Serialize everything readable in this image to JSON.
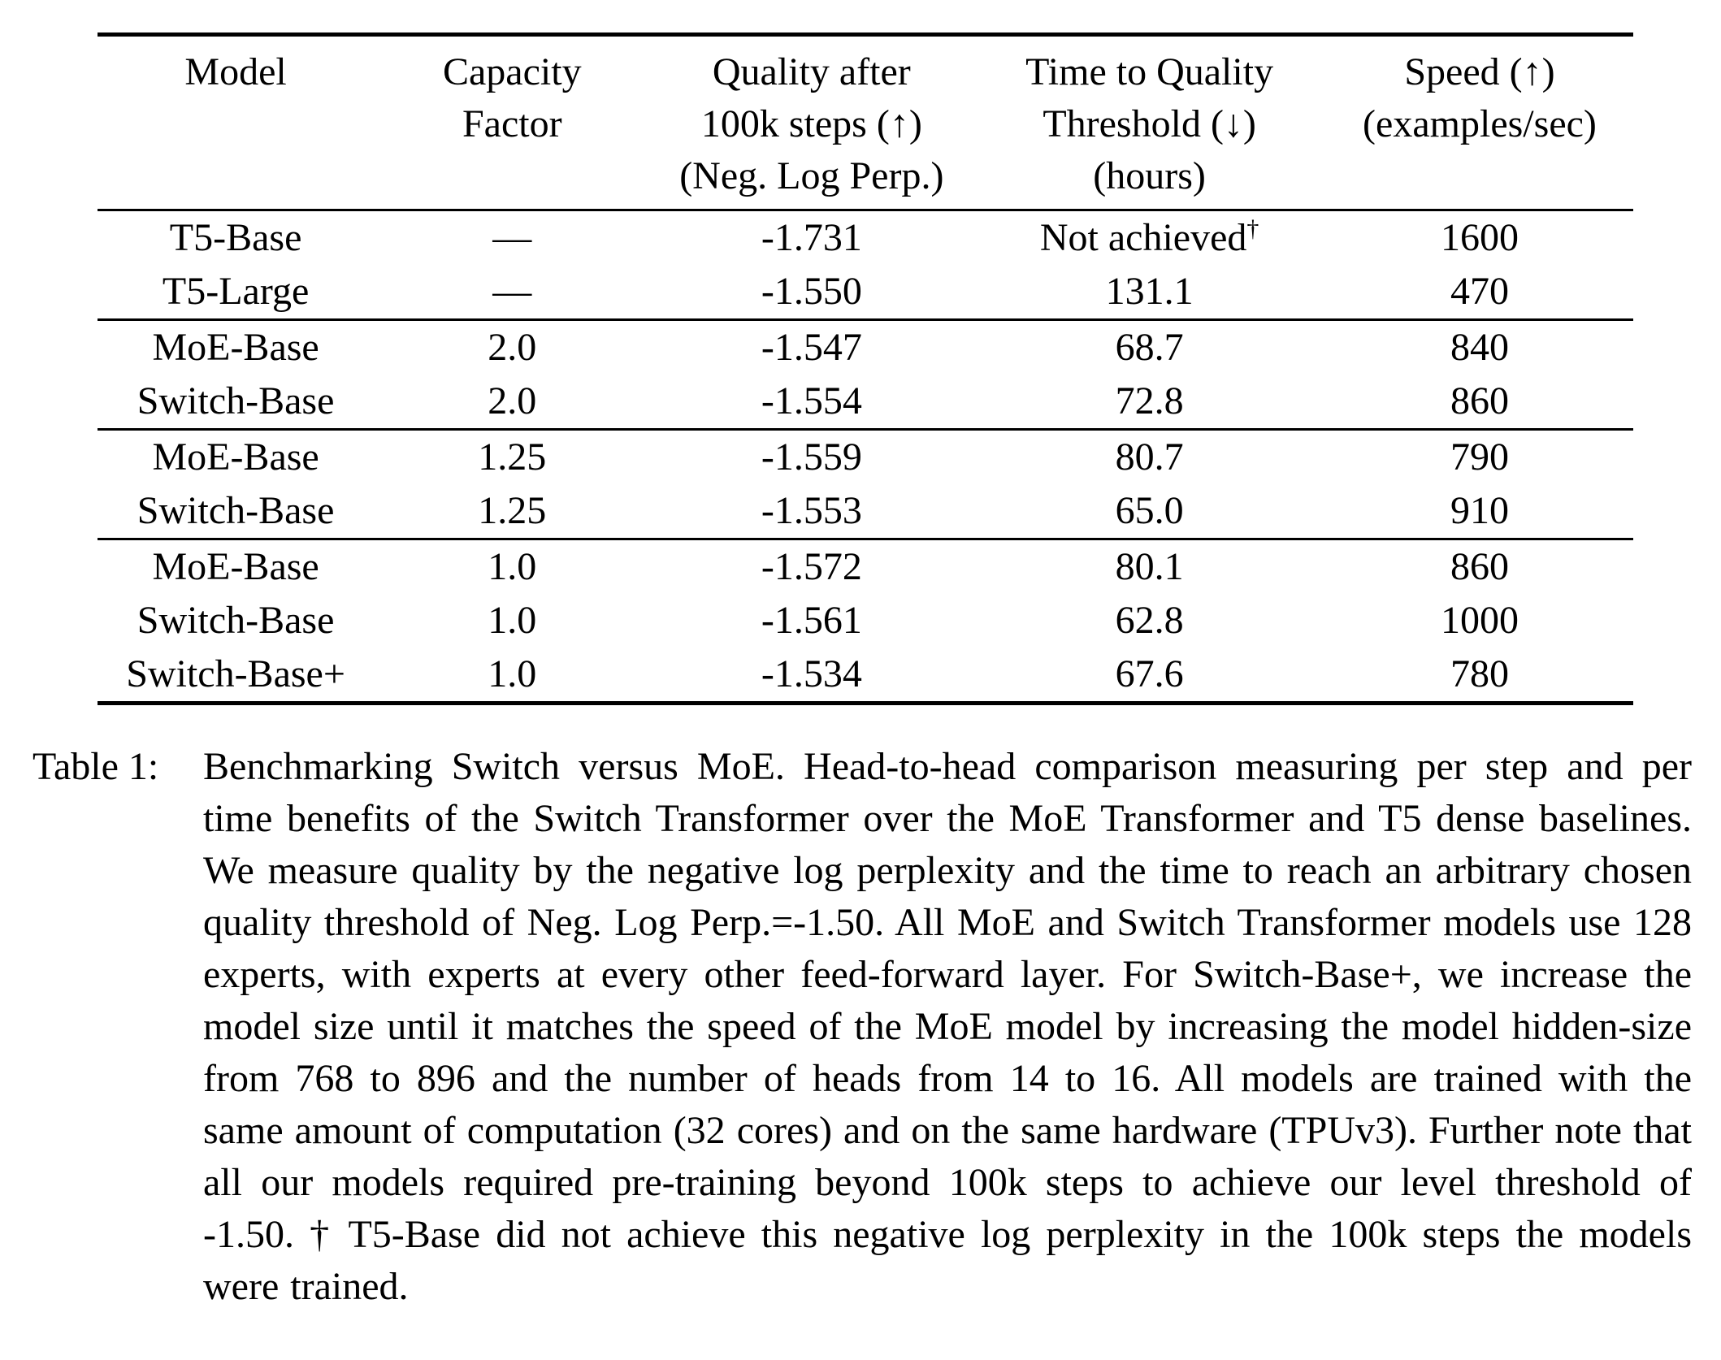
{
  "colors": {
    "text": "#000000",
    "background": "#ffffff",
    "rule": "#000000"
  },
  "table": {
    "header": [
      {
        "lines": [
          "Model"
        ]
      },
      {
        "lines": [
          "Capacity",
          "Factor"
        ]
      },
      {
        "lines": [
          "Quality after",
          "100k steps (↑)",
          "(Neg. Log Perp.)"
        ]
      },
      {
        "lines": [
          "Time to Quality",
          "Threshold (↓)",
          "(hours)"
        ]
      },
      {
        "lines": [
          "Speed (↑)",
          "(examples/sec)"
        ]
      }
    ],
    "rows": [
      {
        "model": "T5-Base",
        "capacity_factor": "—",
        "quality": "-1.731",
        "time": "Not achieved",
        "time_sup": "†",
        "speed": "1600"
      },
      {
        "model": "T5-Large",
        "capacity_factor": "—",
        "quality": "-1.550",
        "time": "131.1",
        "speed": "470"
      },
      {
        "model": "MoE-Base",
        "capacity_factor": "2.0",
        "quality": "-1.547",
        "time": "68.7",
        "speed": "840"
      },
      {
        "model": "Switch-Base",
        "capacity_factor": "2.0",
        "quality": "-1.554",
        "time": "72.8",
        "speed": "860"
      },
      {
        "model": "MoE-Base",
        "capacity_factor": "1.25",
        "quality": "-1.559",
        "time": "80.7",
        "speed": "790"
      },
      {
        "model": "Switch-Base",
        "capacity_factor": "1.25",
        "quality": "-1.553",
        "time": "65.0",
        "speed": "910"
      },
      {
        "model": "MoE-Base",
        "capacity_factor": "1.0",
        "quality": "-1.572",
        "time": "80.1",
        "speed": "860"
      },
      {
        "model": "Switch-Base",
        "capacity_factor": "1.0",
        "quality": "-1.561",
        "time": "62.8",
        "speed": "1000"
      },
      {
        "model": "Switch-Base+",
        "capacity_factor": "1.0",
        "quality": "-1.534",
        "time": "67.6",
        "speed": "780"
      }
    ]
  },
  "caption": {
    "label": "Table 1:",
    "text": "Benchmarking Switch versus MoE. Head-to-head comparison measuring per step and per time benefits of the Switch Transformer over the MoE Transformer and T5 dense baselines. We measure quality by the negative log perplexity and the time to reach an arbitrary chosen quality threshold of Neg. Log Perp.=-1.50. All MoE and Switch Transformer models use 128 experts, with experts at every other feed-forward layer. For Switch-Base+, we increase the model size until it matches the speed of the MoE model by increasing the model hidden-size from 768 to 896 and the number of heads from 14 to 16. All models are trained with the same amount of computation (32 cores) and on the same hardware (TPUv3). Further note that all our models required pre-training beyond 100k steps to achieve our level threshold of -1.50. † T5-Base did not achieve this negative log perplexity in the 100k steps the models were trained."
  }
}
